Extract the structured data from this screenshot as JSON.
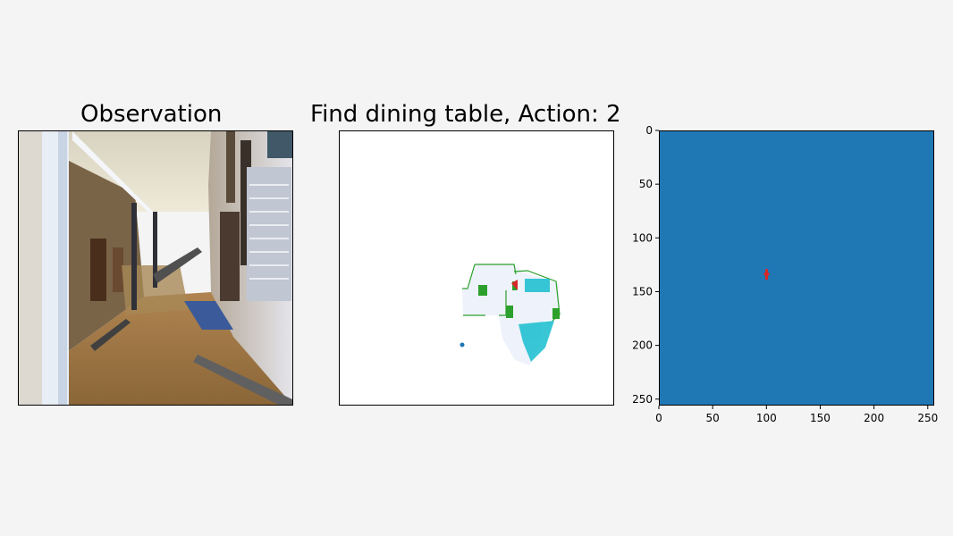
{
  "figure": {
    "observation_title": "Observation",
    "main_title": "Find dining table, Action: 2"
  },
  "colors": {
    "background": "#f4f4f4",
    "value_map": "#1f77b4",
    "agent_marker": "#d62728",
    "goal_point": "#1f77b4",
    "obstacle": "#2ca02c",
    "explored": "#eef2fb",
    "semantic": "#17becf"
  },
  "chart_data": [
    {
      "type": "heatmap",
      "title": "",
      "xlabel": "",
      "ylabel": "",
      "xlim": [
        0,
        256
      ],
      "ylim": [
        256,
        0
      ],
      "x_ticks": [
        "0",
        "50",
        "100",
        "150",
        "200",
        "250"
      ],
      "y_ticks": [
        "0",
        "50",
        "100",
        "150",
        "200",
        "250"
      ],
      "x_tick_values": [
        0,
        50,
        100,
        150,
        200,
        250
      ],
      "y_tick_values": [
        0,
        50,
        100,
        150,
        200,
        250
      ],
      "fill_color": "#1f77b4",
      "marker": {
        "x": 100,
        "y": 134,
        "color": "#d62728"
      }
    }
  ],
  "icons": {
    "agent": "red-triangle-icon",
    "goal": "blue-dot-icon"
  }
}
